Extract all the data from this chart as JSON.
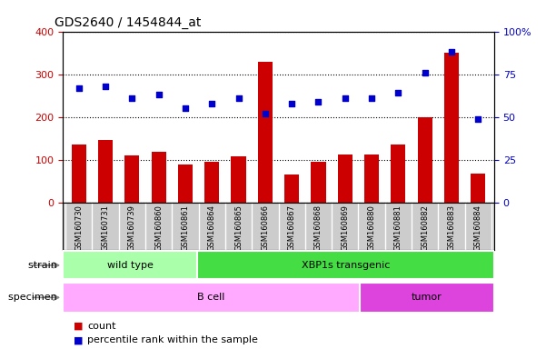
{
  "title": "GDS2640 / 1454844_at",
  "samples": [
    "GSM160730",
    "GSM160731",
    "GSM160739",
    "GSM160860",
    "GSM160861",
    "GSM160864",
    "GSM160865",
    "GSM160866",
    "GSM160867",
    "GSM160868",
    "GSM160869",
    "GSM160880",
    "GSM160881",
    "GSM160882",
    "GSM160883",
    "GSM160884"
  ],
  "counts": [
    135,
    147,
    110,
    118,
    88,
    95,
    108,
    328,
    65,
    95,
    113,
    112,
    135,
    200,
    350,
    68
  ],
  "percentiles": [
    67,
    68,
    61,
    63,
    55,
    58,
    61,
    52,
    58,
    59,
    61,
    61,
    64,
    76,
    88,
    49
  ],
  "count_ylim": [
    0,
    400
  ],
  "pct_ylim": [
    0,
    100
  ],
  "count_ticks": [
    0,
    100,
    200,
    300,
    400
  ],
  "pct_ticks": [
    0,
    25,
    50,
    75,
    100
  ],
  "bar_color": "#cc0000",
  "dot_color": "#0000cc",
  "strain_groups": [
    {
      "label": "wild type",
      "start": 0,
      "end": 5,
      "color": "#aaffaa"
    },
    {
      "label": "XBP1s transgenic",
      "start": 5,
      "end": 16,
      "color": "#44dd44"
    }
  ],
  "specimen_groups": [
    {
      "label": "B cell",
      "start": 0,
      "end": 11,
      "color": "#ffaaff"
    },
    {
      "label": "tumor",
      "start": 11,
      "end": 16,
      "color": "#dd44dd"
    }
  ],
  "strain_label": "strain",
  "specimen_label": "specimen",
  "legend_count_label": "count",
  "legend_pct_label": "percentile rank within the sample",
  "background_color": "#ffffff",
  "plot_bg_color": "#ffffff",
  "xtick_bg_color": "#cccccc",
  "grid_color": "#000000",
  "pct_label_color": "#0000cc",
  "count_label_color": "#cc0000"
}
